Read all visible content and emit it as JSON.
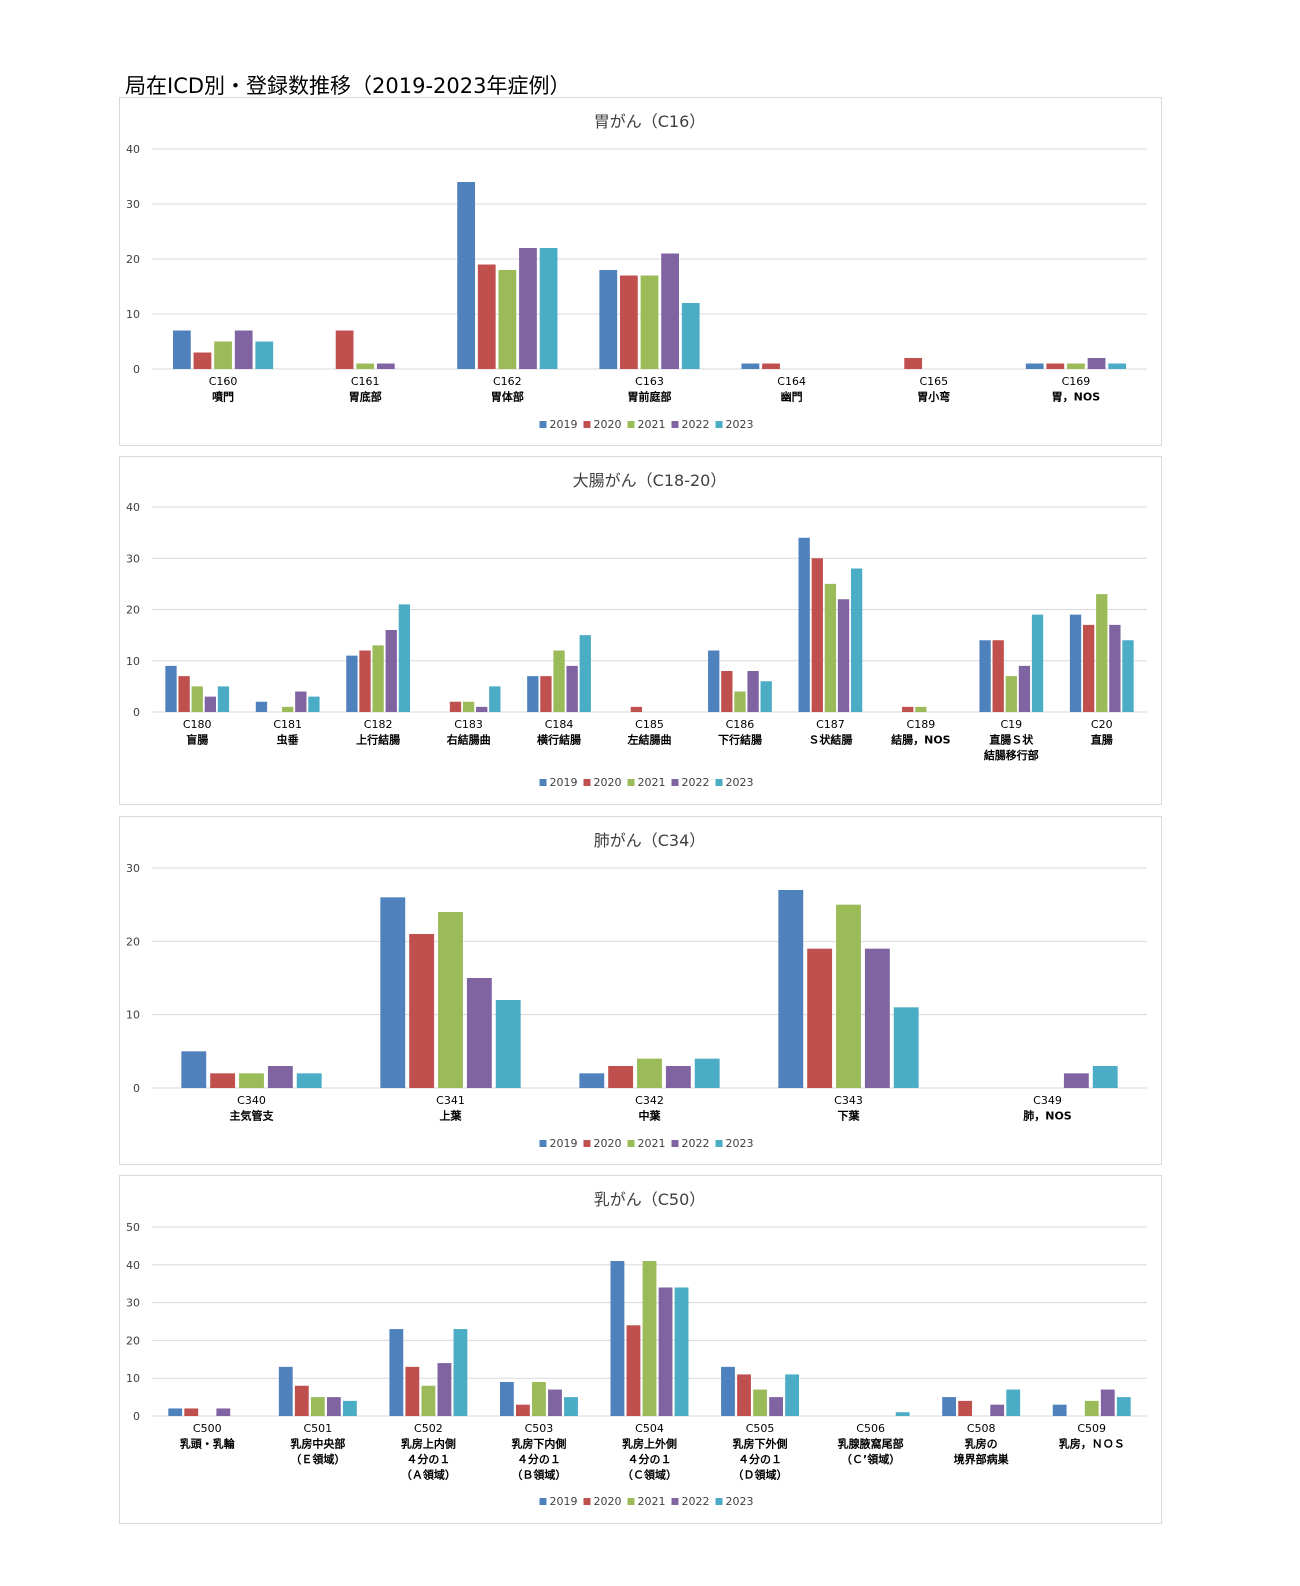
{
  "page_title": "局在ICD別・登録数推移（2019-2023年症例）",
  "colors": {
    "2019": "#4f81bd",
    "2020": "#c0504d",
    "2021": "#9bbb59",
    "2022": "#8064a2",
    "2023": "#4bacc6"
  },
  "chart_data": [
    {
      "type": "bar",
      "title": "胃がん（C16）",
      "ylim": [
        0,
        40
      ],
      "yticks": [
        0,
        10,
        20,
        30,
        40
      ],
      "grid": true,
      "legend": "bottom",
      "categories": [
        [
          "C160",
          "噴門"
        ],
        [
          "C161",
          "胃底部"
        ],
        [
          "C162",
          "胃体部"
        ],
        [
          "C163",
          "胃前庭部"
        ],
        [
          "C164",
          "幽門"
        ],
        [
          "C165",
          "胃小弯"
        ],
        [
          "C169",
          "胃，NOS"
        ]
      ],
      "series": [
        {
          "name": "2019",
          "values": [
            7,
            0,
            34,
            18,
            1,
            0,
            1
          ]
        },
        {
          "name": "2020",
          "values": [
            3,
            7,
            19,
            17,
            1,
            2,
            1
          ]
        },
        {
          "name": "2021",
          "values": [
            5,
            1,
            18,
            17,
            0,
            0,
            1
          ]
        },
        {
          "name": "2022",
          "values": [
            7,
            1,
            22,
            21,
            0,
            0,
            2
          ]
        },
        {
          "name": "2023",
          "values": [
            5,
            0,
            22,
            12,
            0,
            0,
            1
          ]
        }
      ]
    },
    {
      "type": "bar",
      "title": "大腸がん（C18-20）",
      "ylim": [
        0,
        40
      ],
      "yticks": [
        0,
        10,
        20,
        30,
        40
      ],
      "grid": true,
      "legend": "bottom",
      "categories": [
        [
          "C180",
          "盲腸"
        ],
        [
          "C181",
          "虫垂"
        ],
        [
          "C182",
          "上行結腸"
        ],
        [
          "C183",
          "右結腸曲"
        ],
        [
          "C184",
          "横行結腸"
        ],
        [
          "C185",
          "左結腸曲"
        ],
        [
          "C186",
          "下行結腸"
        ],
        [
          "C187",
          "Ｓ状結腸"
        ],
        [
          "C189",
          "結腸，NOS"
        ],
        [
          "C19",
          "直腸Ｓ状",
          "結腸移行部"
        ],
        [
          "C20",
          "直腸"
        ]
      ],
      "series": [
        {
          "name": "2019",
          "values": [
            9,
            2,
            11,
            0,
            7,
            0,
            12,
            34,
            0,
            14,
            19
          ]
        },
        {
          "name": "2020",
          "values": [
            7,
            0,
            12,
            2,
            7,
            1,
            8,
            30,
            1,
            14,
            17
          ]
        },
        {
          "name": "2021",
          "values": [
            5,
            1,
            13,
            2,
            12,
            0,
            4,
            25,
            1,
            7,
            23
          ]
        },
        {
          "name": "2022",
          "values": [
            3,
            4,
            16,
            1,
            9,
            0,
            8,
            22,
            0,
            9,
            17
          ]
        },
        {
          "name": "2023",
          "values": [
            5,
            3,
            21,
            5,
            15,
            0,
            6,
            28,
            0,
            19,
            14
          ]
        }
      ]
    },
    {
      "type": "bar",
      "title": "肺がん（C34）",
      "ylim": [
        0,
        30
      ],
      "yticks": [
        0,
        10,
        20,
        30
      ],
      "grid": true,
      "legend": "bottom",
      "categories": [
        [
          "C340",
          "主気管支"
        ],
        [
          "C341",
          "上葉"
        ],
        [
          "C342",
          "中葉"
        ],
        [
          "C343",
          "下葉"
        ],
        [
          "C349",
          "肺，NOS"
        ]
      ],
      "series": [
        {
          "name": "2019",
          "values": [
            5,
            26,
            2,
            27,
            0
          ]
        },
        {
          "name": "2020",
          "values": [
            2,
            21,
            3,
            19,
            0
          ]
        },
        {
          "name": "2021",
          "values": [
            2,
            24,
            4,
            25,
            0
          ]
        },
        {
          "name": "2022",
          "values": [
            3,
            15,
            3,
            19,
            2
          ]
        },
        {
          "name": "2023",
          "values": [
            2,
            12,
            4,
            11,
            3
          ]
        }
      ]
    },
    {
      "type": "bar",
      "title": "乳がん（C50）",
      "ylim": [
        0,
        50
      ],
      "yticks": [
        0,
        10,
        20,
        30,
        40,
        50
      ],
      "grid": true,
      "legend": "bottom",
      "categories": [
        [
          "C500",
          "乳頭・乳輪"
        ],
        [
          "C501",
          "乳房中央部",
          "（Ｅ領域）"
        ],
        [
          "C502",
          "乳房上内側",
          "４分の１",
          "（Ａ領域）"
        ],
        [
          "C503",
          "乳房下内側",
          "４分の１",
          "（Ｂ領域）"
        ],
        [
          "C504",
          "乳房上外側",
          "４分の１",
          "（Ｃ領域）"
        ],
        [
          "C505",
          "乳房下外側",
          "４分の１",
          "（Ｄ領域）"
        ],
        [
          "C506",
          "乳腺腋窩尾部",
          "（Ｃ’領域）"
        ],
        [
          "C508",
          "乳房の",
          "境界部病巣"
        ],
        [
          "C509",
          "乳房，ＮＯＳ"
        ]
      ],
      "series": [
        {
          "name": "2019",
          "values": [
            2,
            13,
            23,
            9,
            41,
            13,
            0,
            5,
            3
          ]
        },
        {
          "name": "2020",
          "values": [
            2,
            8,
            13,
            3,
            24,
            11,
            0,
            4,
            0
          ]
        },
        {
          "name": "2021",
          "values": [
            0,
            5,
            8,
            9,
            41,
            7,
            0,
            0,
            4
          ]
        },
        {
          "name": "2022",
          "values": [
            2,
            5,
            14,
            7,
            34,
            5,
            0,
            3,
            7
          ]
        },
        {
          "name": "2023",
          "values": [
            0,
            4,
            23,
            5,
            34,
            11,
            1,
            7,
            5
          ]
        }
      ]
    }
  ]
}
